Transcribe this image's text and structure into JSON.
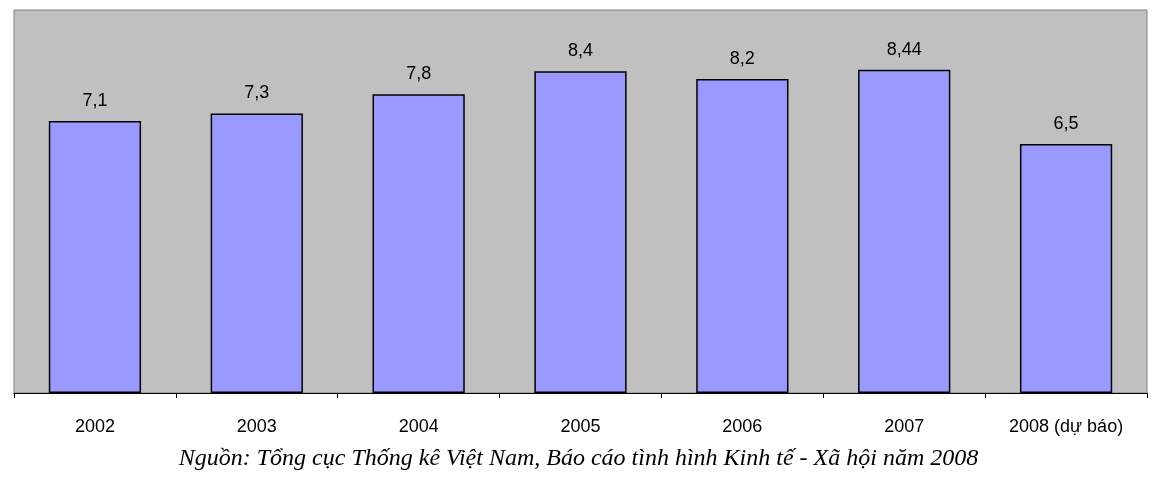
{
  "chart_data": {
    "type": "bar",
    "categories": [
      "2002",
      "2003",
      "2004",
      "2005",
      "2006",
      "2007",
      "2008 (dự báo)"
    ],
    "values": [
      7.1,
      7.3,
      7.8,
      8.4,
      8.2,
      8.44,
      6.5
    ],
    "value_labels": [
      "7,1",
      "7,3",
      "7,8",
      "8,4",
      "8,2",
      "8,44",
      "6,5"
    ],
    "color": "#9999ff",
    "annotations": [
      "Nguồn: Tổng cục Thống kê Việt Nam, Báo cáo tình hình Kinh tế - Xã hội năm 2008"
    ]
  }
}
